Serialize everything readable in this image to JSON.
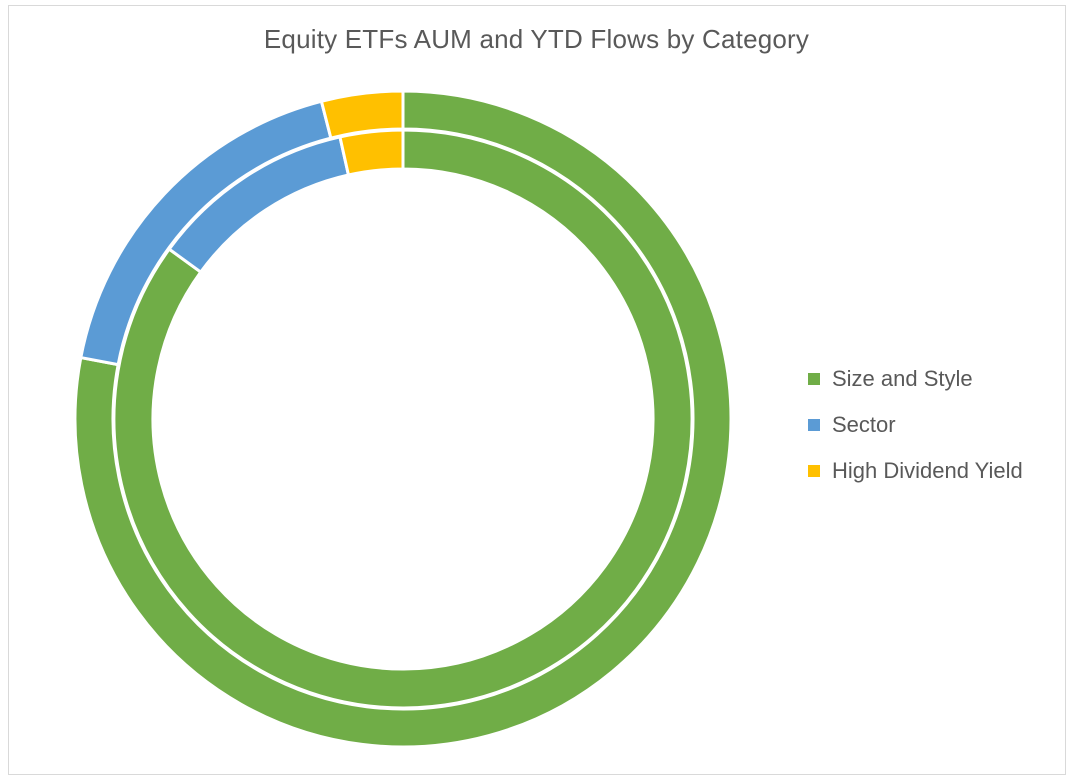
{
  "chart_data": {
    "type": "pie",
    "subtype": "doughnut",
    "title": "Equity ETFs AUM and YTD Flows by Category",
    "categories": [
      "Size and Style",
      "Sector",
      "High Dividend Yield"
    ],
    "colors": [
      "#70ad47",
      "#5b9bd5",
      "#ffc000"
    ],
    "rings": [
      {
        "ring": "outer",
        "values": [
          78,
          18,
          4
        ]
      },
      {
        "ring": "inner",
        "values": [
          85,
          11.5,
          3.5
        ]
      }
    ],
    "legend_position": "right"
  }
}
